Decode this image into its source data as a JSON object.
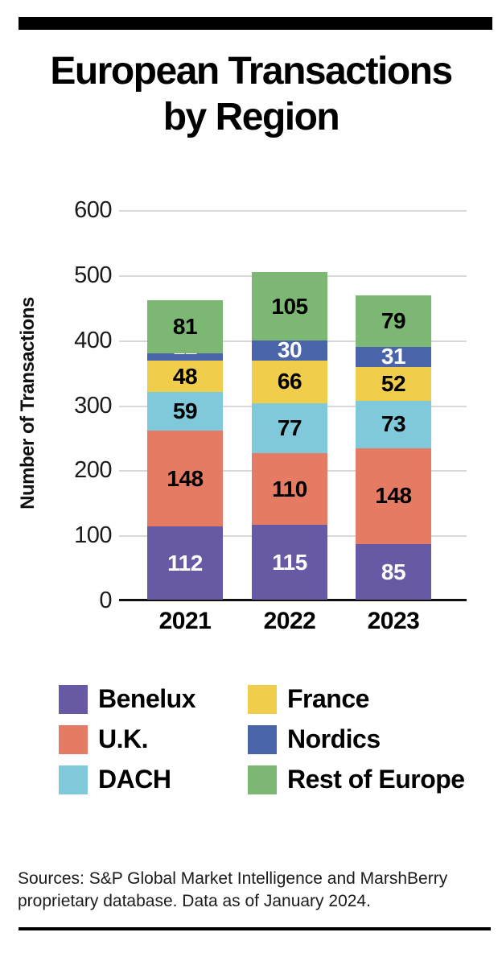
{
  "page": {
    "title_line1": "European Transactions",
    "title_line2": "by Region",
    "source_lines": [
      "Sources: S&P Global Market Intelligence and MarshBerry",
      "proprietary database. Data as of January 2024."
    ]
  },
  "colors": {
    "gridline": "#D9D9D9",
    "axis": "#111111",
    "rule": "#000000"
  },
  "chart_data": {
    "type": "bar",
    "stacked": true,
    "title": "European Transactions by Region",
    "xlabel": "",
    "ylabel": "Number of Transactions",
    "ylim": [
      0,
      600
    ],
    "yticks": [
      0,
      100,
      200,
      300,
      400,
      500,
      600
    ],
    "grid": true,
    "legend_position": "below",
    "categories": [
      "2021",
      "2022",
      "2023"
    ],
    "series": [
      {
        "name": "Benelux",
        "color": "#6759A4",
        "label_color": "#ffffff",
        "values": [
          112,
          115,
          85
        ]
      },
      {
        "name": "U.K.",
        "color": "#E57B63",
        "label_color": "#000000",
        "values": [
          148,
          110,
          148
        ]
      },
      {
        "name": "DACH",
        "color": "#80C9DA",
        "label_color": "#000000",
        "values": [
          59,
          77,
          73
        ]
      },
      {
        "name": "France",
        "color": "#F0CE4B",
        "label_color": "#000000",
        "values": [
          48,
          66,
          52
        ]
      },
      {
        "name": "Nordics",
        "color": "#4A64A9",
        "label_color": "#ffffff",
        "values": [
          12,
          30,
          31
        ]
      },
      {
        "name": "Rest of Europe",
        "color": "#7CB873",
        "label_color": "#000000",
        "values": [
          81,
          105,
          79
        ]
      }
    ]
  }
}
